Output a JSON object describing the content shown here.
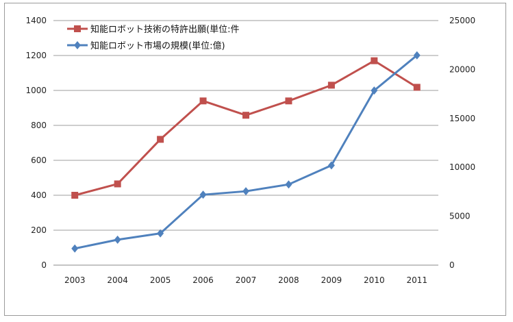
{
  "chart_data": {
    "type": "line",
    "x": [
      "2003",
      "2004",
      "2005",
      "2006",
      "2007",
      "2008",
      "2009",
      "2010",
      "2011"
    ],
    "y_left": {
      "min": 0,
      "max": 1400,
      "ticks": [
        "0",
        "200",
        "400",
        "600",
        "800",
        "1000",
        "1200",
        "1400"
      ]
    },
    "y_right": {
      "min": 0,
      "max": 25000,
      "ticks": [
        "0",
        "5000",
        "10000",
        "15000",
        "20000",
        "25000"
      ]
    },
    "grid": true,
    "legend_position": "top-left",
    "series": [
      {
        "name": "知能ロボット技術の特許出願(単位:件",
        "axis": "left",
        "color": "#c0504d",
        "marker": "square",
        "values": [
          400,
          465,
          720,
          940,
          858,
          940,
          1030,
          1170,
          1018
        ]
      },
      {
        "name": "知能ロボット市場の規模(単位:億)",
        "axis": "right",
        "color": "#4f81bd",
        "marker": "diamond",
        "values": [
          1700,
          2600,
          3250,
          7200,
          7550,
          8250,
          10200,
          17850,
          21450
        ]
      }
    ]
  }
}
